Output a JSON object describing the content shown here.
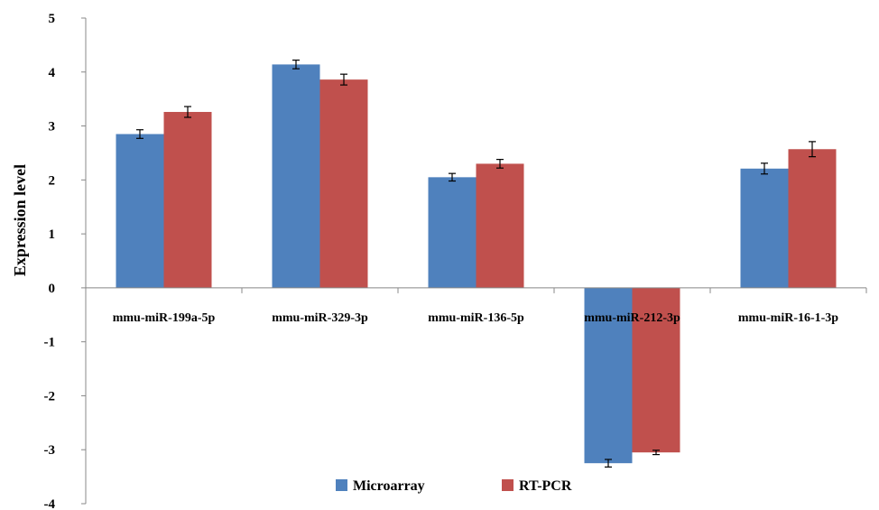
{
  "chart_data": {
    "type": "bar",
    "categories": [
      "mmu-miR-199a-5p",
      "mmu-miR-329-3p",
      "mmu-miR-136-5p",
      "mmu-miR-212-3p",
      "mmu-miR-16-1-3p"
    ],
    "series": [
      {
        "name": "Microarray",
        "color": "#4F81BD",
        "values": [
          2.85,
          4.14,
          2.05,
          -3.25,
          2.21
        ],
        "errors": [
          0.08,
          0.08,
          0.07,
          0.07,
          0.1
        ]
      },
      {
        "name": "RT-PCR",
        "color": "#C0504D",
        "values": [
          3.26,
          3.86,
          2.3,
          -3.05,
          2.57
        ],
        "errors": [
          0.1,
          0.1,
          0.08,
          0.04,
          0.14
        ]
      }
    ],
    "ylabel": "Expression level",
    "xlabel": "",
    "title": "",
    "ylim": [
      -4,
      5
    ],
    "yticks": [
      -4,
      -3,
      -2,
      -1,
      0,
      1,
      2,
      3,
      4,
      5
    ],
    "grid": false,
    "legend_position": "bottom-center"
  }
}
